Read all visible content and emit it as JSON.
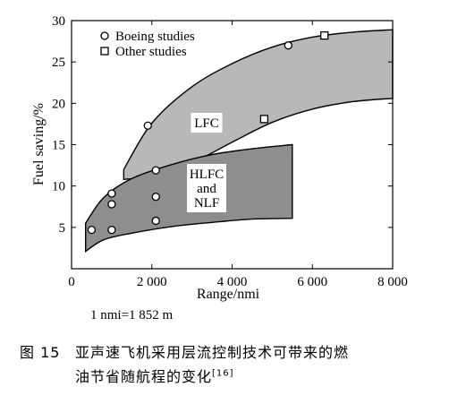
{
  "chart_data": {
    "type": "scatter",
    "xlabel": "Range/nmi",
    "ylabel": "Fuel saving/%",
    "xlim": [
      0,
      8000
    ],
    "ylim": [
      0,
      30
    ],
    "xticks": [
      0,
      2000,
      4000,
      6000,
      8000
    ],
    "xtick_labels": [
      "0",
      "2 000",
      "4 000",
      "6 000",
      "8 000"
    ],
    "yticks": [
      5,
      10,
      15,
      20,
      25,
      30
    ],
    "ytick_labels": [
      "5",
      "10",
      "15",
      "20",
      "25",
      "30"
    ],
    "grid": false,
    "legend_position": "top-left",
    "legend": [
      {
        "label": "Boeing studies",
        "marker": "circle"
      },
      {
        "label": "Other studies",
        "marker": "square"
      }
    ],
    "series": [
      {
        "name": "Boeing studies",
        "marker": "circle",
        "x": [
          500,
          1000,
          1000,
          1000,
          1900,
          2100,
          2100,
          2100,
          5400
        ],
        "y": [
          4.7,
          4.7,
          7.8,
          9.1,
          17.3,
          5.8,
          8.7,
          11.9,
          27.0
        ]
      },
      {
        "name": "Other studies",
        "marker": "square",
        "x": [
          4800,
          6300
        ],
        "y": [
          18.1,
          28.2
        ]
      }
    ],
    "bands": [
      {
        "label": "LFC",
        "fill": "#b8b8b8",
        "upper": [
          [
            1300,
            12.0
          ],
          [
            2000,
            17.6
          ],
          [
            3000,
            22.0
          ],
          [
            4000,
            24.8
          ],
          [
            5000,
            26.8
          ],
          [
            6000,
            28.0
          ],
          [
            7000,
            28.6
          ],
          [
            8000,
            28.9
          ]
        ],
        "lower": [
          [
            1300,
            10.8
          ],
          [
            2000,
            11.2
          ],
          [
            3000,
            12.8
          ],
          [
            4000,
            15.3
          ],
          [
            5000,
            17.7
          ],
          [
            6000,
            19.3
          ],
          [
            7000,
            20.2
          ],
          [
            8000,
            20.6
          ]
        ]
      },
      {
        "label": "HLFC and NLF",
        "fill": "#8e8e8e",
        "upper": [
          [
            350,
            5.5
          ],
          [
            800,
            8.6
          ],
          [
            1500,
            10.9
          ],
          [
            2500,
            12.6
          ],
          [
            3500,
            13.8
          ],
          [
            4500,
            14.5
          ],
          [
            5500,
            15.0
          ]
        ],
        "lower": [
          [
            350,
            2.1
          ],
          [
            800,
            3.5
          ],
          [
            1500,
            4.3
          ],
          [
            2500,
            5.1
          ],
          [
            3500,
            5.6
          ],
          [
            4500,
            6.0
          ],
          [
            5500,
            6.1
          ]
        ]
      }
    ],
    "band_labels": [
      {
        "band": "LFC",
        "lines": [
          "LFC"
        ]
      },
      {
        "band": "HLFC and NLF",
        "lines": [
          "HLFC",
          "and",
          "NLF"
        ]
      }
    ]
  },
  "note": "1 nmi=1 852 m",
  "caption": {
    "number": "图 15",
    "line1": "亚声速飞机采用层流控制技术可带来的燃",
    "line2": "油节省随航程的变化",
    "ref": "[16]"
  }
}
